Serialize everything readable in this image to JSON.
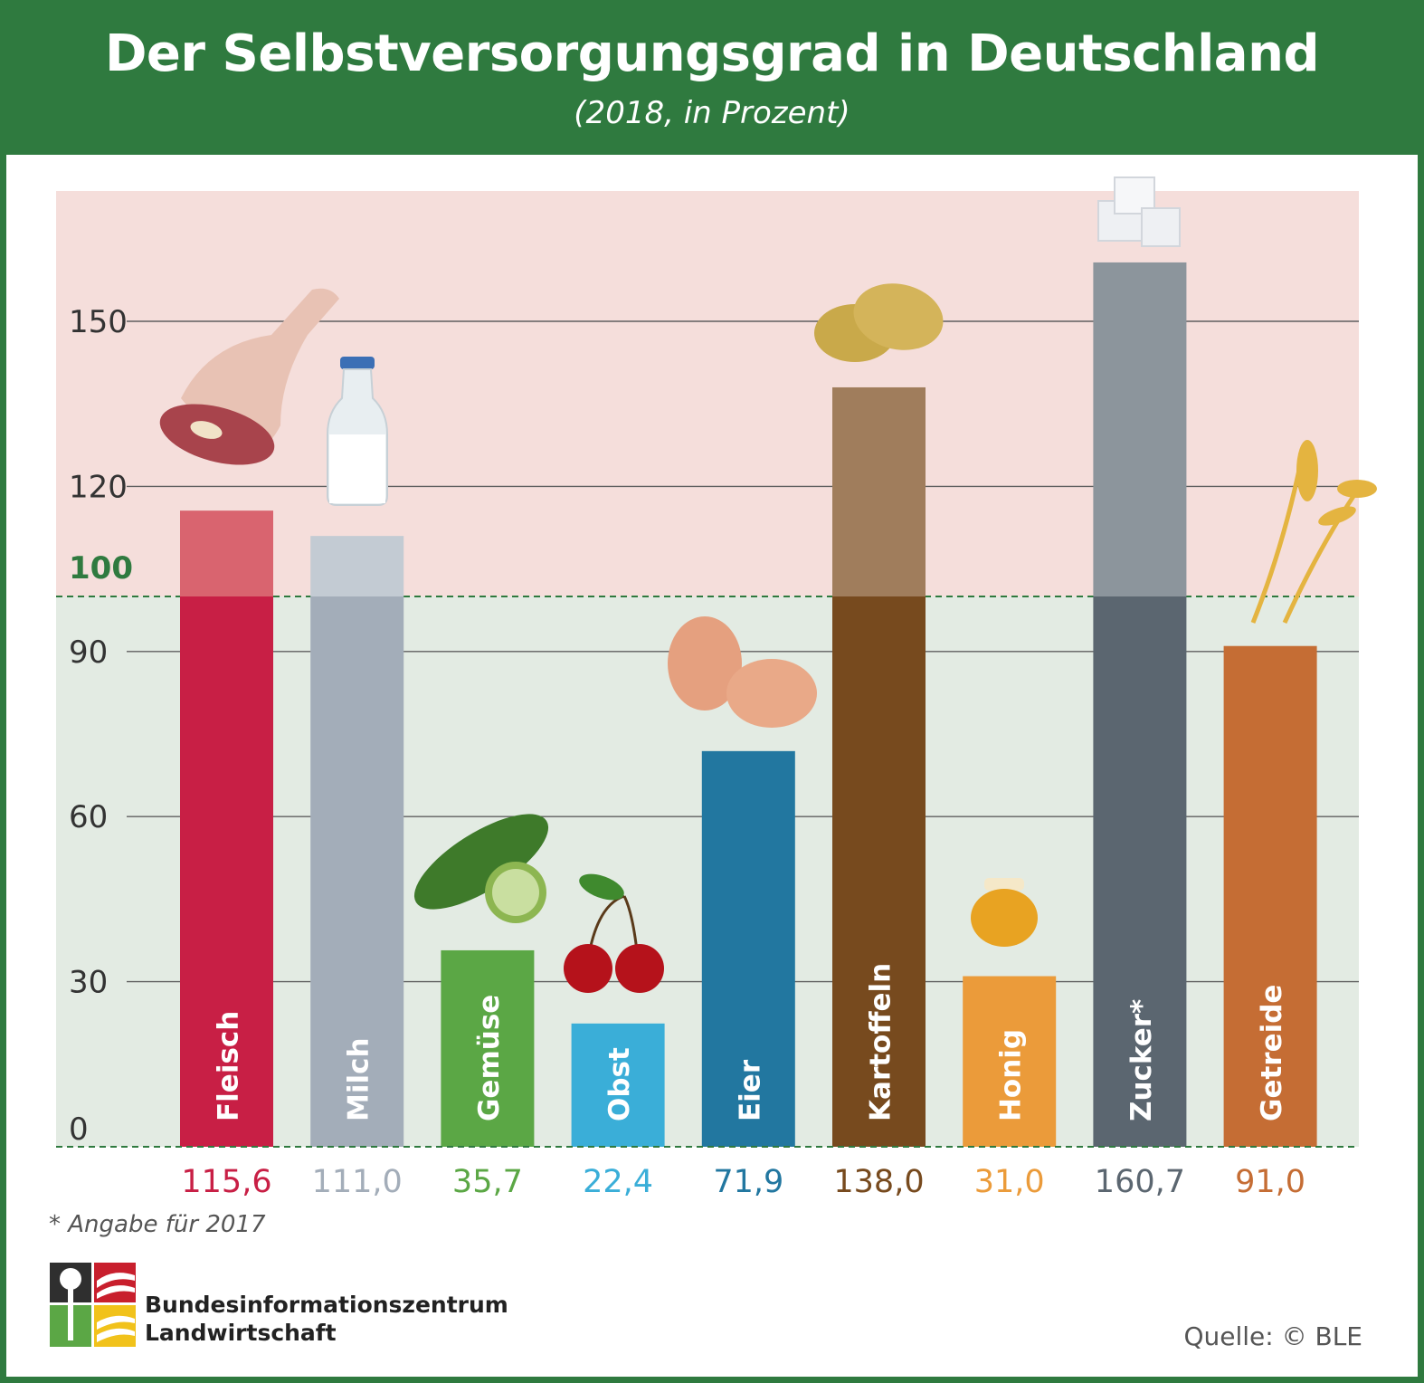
{
  "title": "Der Selbstversorgungsgrad in Deutschland",
  "subtitle": "(2018, in Prozent)",
  "footnote": "* Angabe für 2017",
  "publisher": {
    "line1": "Bundesinformationszentrum",
    "line2": "Landwirtschaft"
  },
  "source": "Quelle: © BLE",
  "colors": {
    "header_green": "#2f7a3f",
    "surplus_zone": "#f5dedb",
    "deficit_zone": "#e3ebe3",
    "threshold_line": "#2f7a3f"
  },
  "chart_data": {
    "type": "bar",
    "title": "Der Selbstversorgungsgrad in Deutschland",
    "subtitle": "(2018, in Prozent)",
    "categories": [
      "Fleisch",
      "Milch",
      "Gemüse",
      "Obst",
      "Eier",
      "Kartoffeln",
      "Honig",
      "Zucker*",
      "Getreide"
    ],
    "values": [
      115.6,
      111.0,
      35.7,
      22.4,
      71.9,
      138.0,
      31.0,
      160.7,
      91.0
    ],
    "value_labels": [
      "115,6",
      "111,0",
      "35,7",
      "22,4",
      "71,9",
      "138,0",
      "31,0",
      "160,7",
      "91,0"
    ],
    "bar_colors": [
      "#c81f45",
      "#a3adb9",
      "#5ba745",
      "#3aaed8",
      "#2277a0",
      "#774a1e",
      "#eb9b3a",
      "#5b6670",
      "#c56d34"
    ],
    "bar_colors_above_100": [
      "#d9646f",
      "#c3cbd3",
      null,
      null,
      null,
      "#a07d5c",
      null,
      "#8c959c",
      null
    ],
    "value_label_colors": [
      "#c81f45",
      "#a3adb9",
      "#5ba745",
      "#3aaed8",
      "#2277a0",
      "#774a1e",
      "#eb9b3a",
      "#5b6670",
      "#c56d34"
    ],
    "icons": [
      "meat-icon",
      "milk-bottle-icon",
      "cucumber-icon",
      "cherries-icon",
      "eggs-icon",
      "potatoes-icon",
      "honey-jar-icon",
      "sugar-cubes-icon",
      "wheat-icon"
    ],
    "y_ticks": [
      "0",
      "30",
      "60",
      "90",
      "120",
      "150"
    ],
    "y_tick_values": [
      0,
      30,
      60,
      90,
      120,
      150
    ],
    "threshold": 100,
    "threshold_label": "100",
    "ylim": [
      0,
      173
    ],
    "grid": true,
    "xlabel": "",
    "ylabel": ""
  }
}
